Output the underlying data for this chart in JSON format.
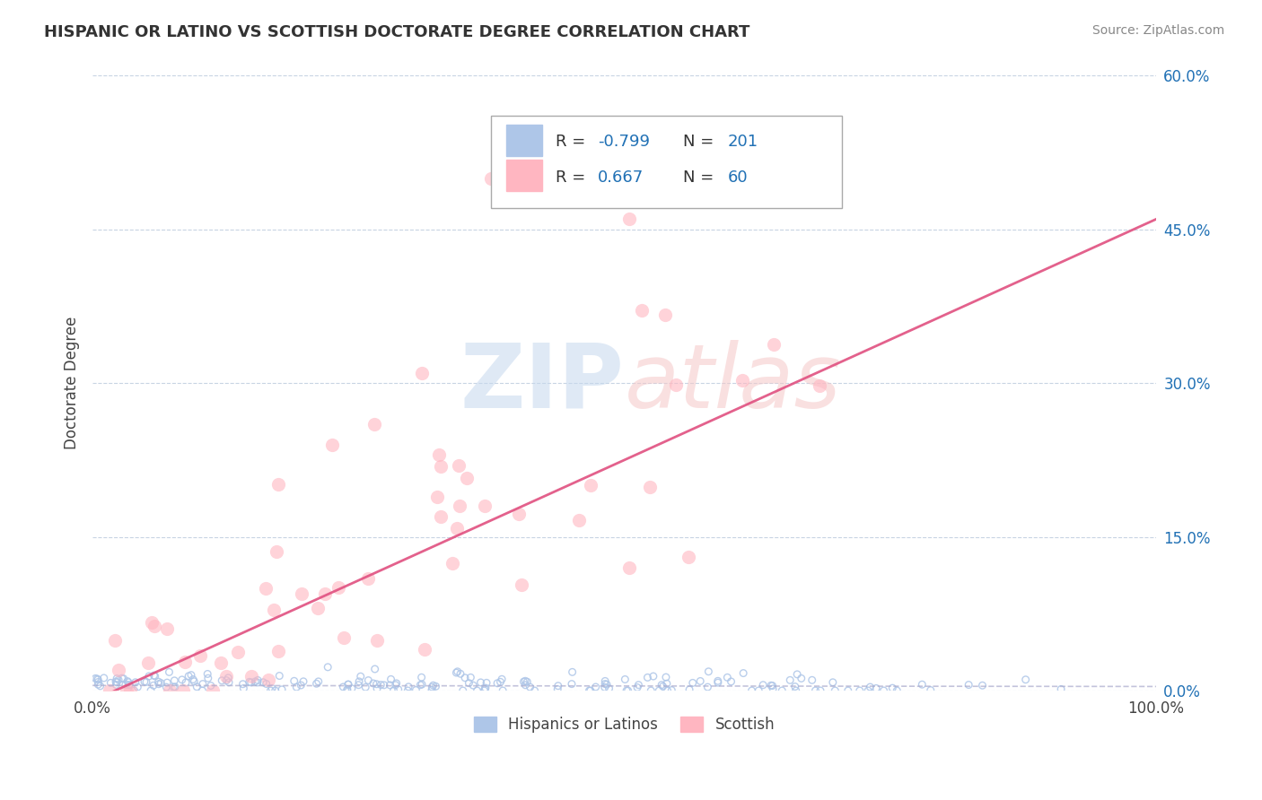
{
  "title": "HISPANIC OR LATINO VS SCOTTISH DOCTORATE DEGREE CORRELATION CHART",
  "source": "Source: ZipAtlas.com",
  "ylabel": "Doctorate Degree",
  "y_tick_labels_right": [
    "0.0%",
    "15.0%",
    "30.0%",
    "45.0%",
    "60.0%"
  ],
  "legend_r1_label": "R = ",
  "legend_r1_val": "-0.799",
  "legend_n1_label": "N = ",
  "legend_n1_val": "201",
  "legend_r2_label": "R = ",
  "legend_r2_val": "0.667",
  "legend_n2_label": "N = ",
  "legend_n2_val": "60",
  "blue_scatter_color": "#aec6e8",
  "pink_scatter_color": "#ffb6c1",
  "blue_dark": "#2171b5",
  "pink_trend_color": "#e05080",
  "blue_trend_color": "#aaaacc",
  "background_color": "#ffffff",
  "grid_color": "#c8d4e3",
  "watermark_blue": "#c5d8ee",
  "watermark_pink": "#f5c8c8",
  "seed": 42,
  "n_blue": 201,
  "n_pink": 60,
  "r_blue": -0.799,
  "r_pink": 0.667
}
